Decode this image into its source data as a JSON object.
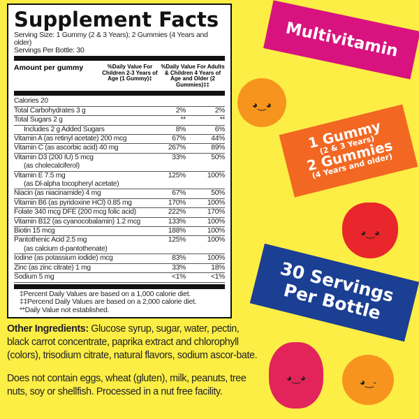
{
  "label": {
    "title": "Supplement Facts",
    "serving_size": "Serving Size: 1 Gummy (2 & 3 Years); 2 Gummies (4 Years and older)",
    "servings_per": "Servings Per Bottle: 30",
    "col_amount": "Amount per gummy",
    "col_children": "%Daily Value For Children 2-3 Years of Age (1 Gummy)‡",
    "col_adults": "%Daily Value For Adults & Children 4 Years of Age and Older (2 Gummies)‡‡",
    "calories": "Calories 20",
    "rows": [
      {
        "name": "Total Carbohydrates 3 g",
        "sub": "",
        "c": "2%",
        "a": "2%"
      },
      {
        "name": "Total Sugars 2 g",
        "sub": "",
        "c": "**",
        "a": "**"
      },
      {
        "name": "Includes 2 g Added Sugars",
        "sub": "",
        "c": "8%",
        "a": "6%",
        "indent": true
      },
      {
        "name": "Vitamin A (as retinyl acetate) 200 mcg",
        "sub": "",
        "c": "67%",
        "a": "44%"
      },
      {
        "name": "Vitamin C (as ascorbic acid) 40 mg",
        "sub": "",
        "c": "267%",
        "a": "89%"
      },
      {
        "name": "Vitamin D3 (200 IU) 5 mcg",
        "sub": "(as cholecalciferol)",
        "c": "33%",
        "a": "50%"
      },
      {
        "name": "Vitamin E 7.5 mg",
        "sub": "(as Dl-alpha tocopheryl acetate)",
        "c": "125%",
        "a": "100%"
      },
      {
        "name": "Niacin (as niacinamide) 4 mg",
        "sub": "",
        "c": "67%",
        "a": "50%"
      },
      {
        "name": "Vitamin B6 (as pyridoxine HCl) 0.85 mg",
        "sub": "",
        "c": "170%",
        "a": "100%"
      },
      {
        "name": "Folate 340 mcg DFE (200 mcg folic acid)",
        "sub": "",
        "c": "222%",
        "a": "170%"
      },
      {
        "name": "Vitamin B12 (as cyanocobalamin) 1.2 mcg",
        "sub": "",
        "c": "133%",
        "a": "100%"
      },
      {
        "name": "Biotin 15 mcg",
        "sub": "",
        "c": "188%",
        "a": "100%"
      },
      {
        "name": "Pantothenic Acid 2.5 mg",
        "sub": "(as calcium d-pantothenate)",
        "c": "125%",
        "a": "100%"
      },
      {
        "name": "Iodine (as potassium iodide) mcg",
        "sub": "",
        "c": "83%",
        "a": "100%"
      },
      {
        "name": "Zinc (as zinc citrate) 1 mg",
        "sub": "",
        "c": "33%",
        "a": "18%"
      },
      {
        "name": "Sodium 5 mg",
        "sub": "",
        "c": "<1%",
        "a": "<1%"
      }
    ],
    "notes": [
      "‡Percent Daily Values are based on a 1,000 calorie diet.",
      "‡‡Percend Daily Values are based on a 2,000 calorie diet.",
      "**Daily Value not established."
    ]
  },
  "ingredients": {
    "heading": "Other Ingredients:",
    "text": " Glucose syrup, sugar, water, pectin, black carrot concentrate, paprika extract and chlorophyll (colors), trisodium citrate, natural flavors, sodium ascor-bate."
  },
  "allergy": "Does not contain eggs, wheat (gluten), milk, peanuts, tree nuts, soy or shellfish. Processed in a nut free facility.",
  "banners": {
    "multivitamin": "Multivitamin",
    "dose1": "1 Gummy",
    "dose1_sub": "(2 & 3 Years)",
    "dose2": "2 Gummies",
    "dose2_sub": "(4 Years and older)",
    "servings_line1": "30 Servings",
    "servings_line2": "Per Bottle"
  },
  "colors": {
    "background": "#fcee45",
    "magenta": "#d8137f",
    "orange": "#f26722",
    "blue": "#1b3f93"
  }
}
